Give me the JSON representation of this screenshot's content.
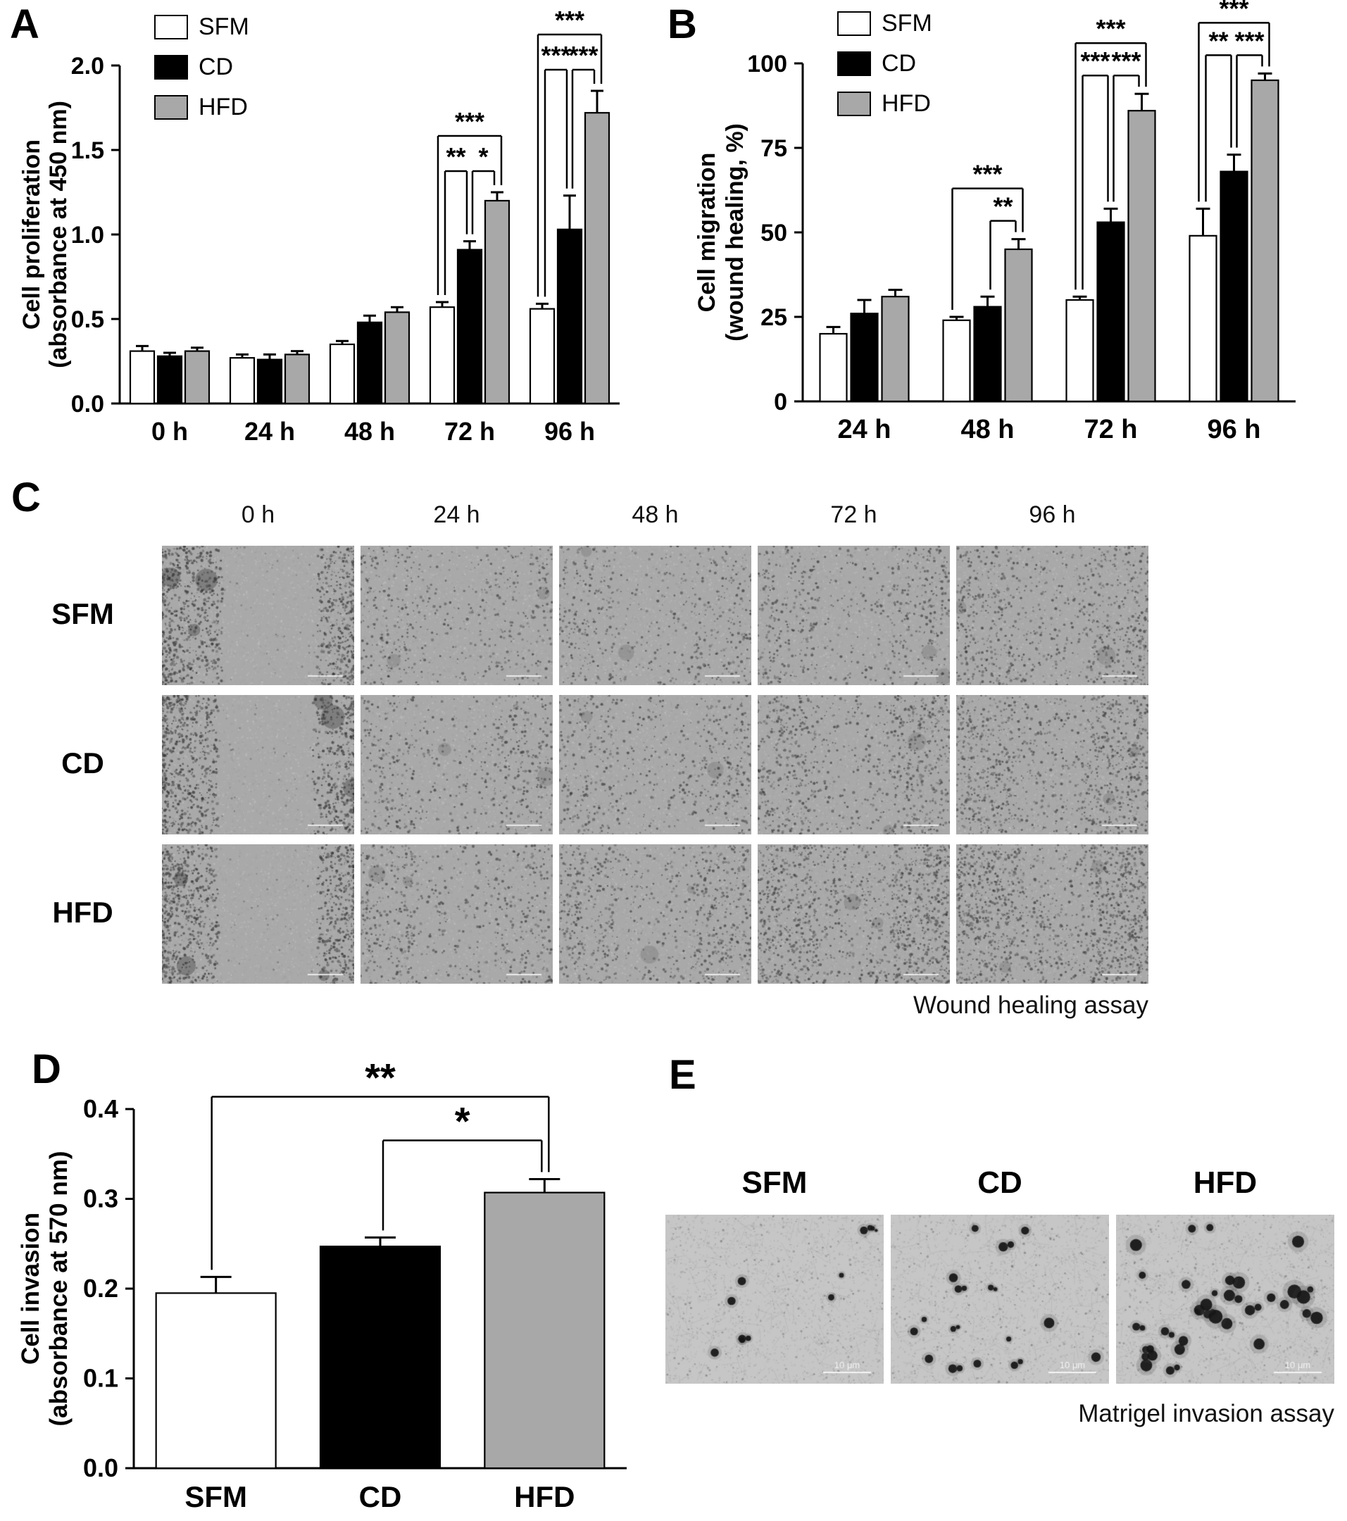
{
  "panels": {
    "A": {
      "label": "A"
    },
    "B": {
      "label": "B"
    },
    "C": {
      "label": "C",
      "columns": [
        "0 h",
        "24 h",
        "48 h",
        "72 h",
        "96 h"
      ],
      "rows": [
        "SFM",
        "CD",
        "HFD"
      ],
      "caption": "Wound healing assay"
    },
    "D": {
      "label": "D"
    },
    "E": {
      "label": "E",
      "columns": [
        "SFM",
        "CD",
        "HFD"
      ],
      "caption": "Matrigel invasion assay",
      "scale_label": "10 μm"
    }
  },
  "colors": {
    "SFM": "#ffffff",
    "CD": "#000000",
    "HFD": "#a8a8a8"
  },
  "chart_data": [
    {
      "id": "A",
      "type": "bar",
      "title": "",
      "ylabel": "Cell proliferation\n(absorbance at 450 nm)",
      "xlabel": "",
      "categories": [
        "0 h",
        "24 h",
        "48 h",
        "72 h",
        "96 h"
      ],
      "series": [
        {
          "name": "SFM",
          "color": "#ffffff",
          "values": [
            0.31,
            0.27,
            0.35,
            0.57,
            0.56
          ],
          "errors": [
            0.03,
            0.02,
            0.02,
            0.03,
            0.03
          ]
        },
        {
          "name": "CD",
          "color": "#000000",
          "values": [
            0.28,
            0.26,
            0.48,
            0.91,
            1.03
          ],
          "errors": [
            0.02,
            0.03,
            0.04,
            0.05,
            0.2
          ]
        },
        {
          "name": "HFD",
          "color": "#a8a8a8",
          "values": [
            0.31,
            0.29,
            0.54,
            1.2,
            1.72
          ],
          "errors": [
            0.02,
            0.02,
            0.03,
            0.05,
            0.13
          ]
        }
      ],
      "ylim": [
        0,
        2.0
      ],
      "yticks": [
        "0.0",
        "0.5",
        "1.0",
        "1.5",
        "2.0"
      ],
      "grid": false,
      "legend_position": "top-left",
      "annotations": [
        {
          "category": "72 h",
          "from": "SFM",
          "to": "CD",
          "label": "**",
          "level": 0
        },
        {
          "category": "72 h",
          "from": "CD",
          "to": "HFD",
          "label": "*",
          "level": 0
        },
        {
          "category": "72 h",
          "from": "SFM",
          "to": "HFD",
          "label": "***",
          "level": 1
        },
        {
          "category": "96 h",
          "from": "SFM",
          "to": "CD",
          "label": "***",
          "level": 0
        },
        {
          "category": "96 h",
          "from": "CD",
          "to": "HFD",
          "label": "***",
          "level": 0
        },
        {
          "category": "96 h",
          "from": "SFM",
          "to": "HFD",
          "label": "***",
          "level": 1
        }
      ]
    },
    {
      "id": "B",
      "type": "bar",
      "title": "",
      "ylabel": "Cell migration\n(wound healing, %)",
      "xlabel": "",
      "categories": [
        "24 h",
        "48 h",
        "72 h",
        "96 h"
      ],
      "series": [
        {
          "name": "SFM",
          "color": "#ffffff",
          "values": [
            20,
            24,
            30,
            49
          ],
          "errors": [
            2,
            1,
            1,
            8
          ]
        },
        {
          "name": "CD",
          "color": "#000000",
          "values": [
            26,
            28,
            53,
            68
          ],
          "errors": [
            4,
            3,
            4,
            5
          ]
        },
        {
          "name": "HFD",
          "color": "#a8a8a8",
          "values": [
            31,
            45,
            86,
            95
          ],
          "errors": [
            2,
            3,
            5,
            2
          ]
        }
      ],
      "ylim": [
        0,
        100
      ],
      "yticks": [
        "0",
        "25",
        "50",
        "75",
        "100"
      ],
      "grid": false,
      "legend_position": "top-left",
      "annotations": [
        {
          "category": "48 h",
          "from": "CD",
          "to": "HFD",
          "label": "**",
          "level": 0
        },
        {
          "category": "48 h",
          "from": "SFM",
          "to": "HFD",
          "label": "***",
          "level": 1
        },
        {
          "category": "72 h",
          "from": "SFM",
          "to": "CD",
          "label": "***",
          "level": 0
        },
        {
          "category": "72 h",
          "from": "CD",
          "to": "HFD",
          "label": "***",
          "level": 0
        },
        {
          "category": "72 h",
          "from": "SFM",
          "to": "HFD",
          "label": "***",
          "level": 1
        },
        {
          "category": "96 h",
          "from": "SFM",
          "to": "CD",
          "label": "**",
          "level": 0
        },
        {
          "category": "96 h",
          "from": "CD",
          "to": "HFD",
          "label": "***",
          "level": 0
        },
        {
          "category": "96 h",
          "from": "SFM",
          "to": "HFD",
          "label": "***",
          "level": 1
        }
      ]
    },
    {
      "id": "D",
      "type": "bar",
      "title": "",
      "ylabel": "Cell invasion\n(absorbance at 570 nm)",
      "xlabel": "",
      "categories": [
        "SFM",
        "CD",
        "HFD"
      ],
      "series": [
        {
          "values": [
            0.195,
            0.247,
            0.307
          ],
          "errors": [
            0.018,
            0.01,
            0.015
          ],
          "colors": [
            "#ffffff",
            "#000000",
            "#a8a8a8"
          ]
        }
      ],
      "ylim": [
        0,
        0.4
      ],
      "yticks": [
        "0.0",
        "0.1",
        "0.2",
        "0.3",
        "0.4"
      ],
      "grid": false,
      "annotations": [
        {
          "from": "CD",
          "to": "HFD",
          "label": "*",
          "level": 0
        },
        {
          "from": "SFM",
          "to": "HFD",
          "label": "**",
          "level": 1
        }
      ]
    }
  ]
}
